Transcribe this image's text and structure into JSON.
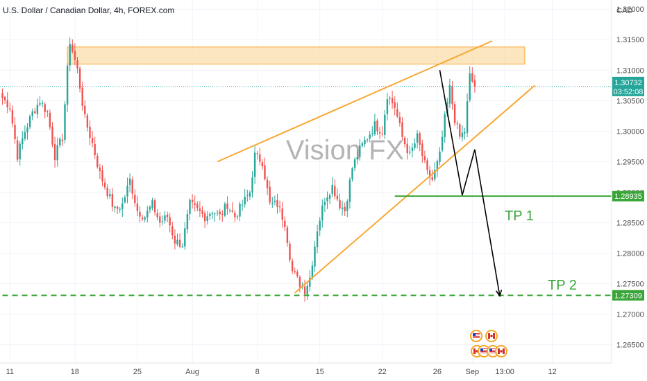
{
  "header": {
    "title": "U.S. Dollar / Canadian Dollar, 4h, FOREX.com",
    "currency": "CAD"
  },
  "watermark": "Vision FX",
  "colors": {
    "up": "#26a69a",
    "down": "#ef5350",
    "pattern": "#f7a834",
    "target": "#3aa639",
    "price_line": "#26a69a",
    "path": "#000000"
  },
  "annotations": {
    "tp1": "TP 1",
    "tp2": "TP 2"
  },
  "current_price": {
    "price": "1.30732",
    "countdown": "03:52:08",
    "value": 1.30732
  },
  "tp1_label": {
    "price": "1.28935",
    "value": 1.28935
  },
  "tp2_label": {
    "price": "1.27309",
    "value": 1.27309
  },
  "icons": [
    "us-flag-icon",
    "ca-flag-icon",
    "ca-flag-icon",
    "us-flag-icon",
    "us-flag-icon",
    "ca-flag-icon"
  ],
  "chart_data": {
    "type": "candlestick",
    "title": "U.S. Dollar / Canadian Dollar, 4h, FOREX.com",
    "ylim": [
      1.262,
      1.3215
    ],
    "y_ticks": [
      "1.32000",
      "1.31500",
      "1.31000",
      "1.30500",
      "1.30000",
      "1.29500",
      "1.29000",
      "1.28500",
      "1.28000",
      "1.27500",
      "1.27000",
      "1.26500"
    ],
    "x_ticks": [
      "11",
      "18",
      "25",
      "Aug",
      "8",
      "15",
      "22",
      "26",
      "Sep",
      "13:00",
      "12"
    ],
    "x_tick_index": [
      3,
      29,
      54,
      76,
      102,
      127,
      152,
      174,
      188,
      201,
      220
    ],
    "anchor_closes": [
      [
        0,
        1.3055
      ],
      [
        3,
        1.304
      ],
      [
        6,
        1.296
      ],
      [
        9,
        1.3
      ],
      [
        12,
        1.303
      ],
      [
        15,
        1.305
      ],
      [
        18,
        1.303
      ],
      [
        21,
        1.296
      ],
      [
        24,
        1.299
      ],
      [
        26,
        1.31
      ],
      [
        27,
        1.3148
      ],
      [
        30,
        1.31
      ],
      [
        33,
        1.302
      ],
      [
        36,
        1.298
      ],
      [
        39,
        1.293
      ],
      [
        42,
        1.29
      ],
      [
        45,
        1.287
      ],
      [
        48,
        1.288
      ],
      [
        51,
        1.292
      ],
      [
        54,
        1.287
      ],
      [
        57,
        1.286
      ],
      [
        60,
        1.288
      ],
      [
        63,
        1.285
      ],
      [
        66,
        1.286
      ],
      [
        69,
        1.282
      ],
      [
        72,
        1.2815
      ],
      [
        75,
        1.288
      ],
      [
        78,
        1.287
      ],
      [
        81,
        1.286
      ],
      [
        84,
        1.287
      ],
      [
        87,
        1.286
      ],
      [
        90,
        1.288
      ],
      [
        93,
        1.286
      ],
      [
        96,
        1.288
      ],
      [
        99,
        1.29
      ],
      [
        101,
        1.296
      ],
      [
        104,
        1.295
      ],
      [
        107,
        1.288
      ],
      [
        110,
        1.288
      ],
      [
        113,
        1.285
      ],
      [
        116,
        1.277
      ],
      [
        119,
        1.275
      ],
      [
        121,
        1.274
      ],
      [
        123,
        1.276
      ],
      [
        126,
        1.284
      ],
      [
        129,
        1.289
      ],
      [
        132,
        1.291
      ],
      [
        135,
        1.288
      ],
      [
        137,
        1.287
      ],
      [
        140,
        1.294
      ],
      [
        143,
        1.297
      ],
      [
        146,
        1.299
      ],
      [
        149,
        1.301
      ],
      [
        152,
        1.3
      ],
      [
        154,
        1.306
      ],
      [
        157,
        1.304
      ],
      [
        160,
        1.299
      ],
      [
        163,
        1.296
      ],
      [
        166,
        1.299
      ],
      [
        168,
        1.296
      ],
      [
        170,
        1.293
      ],
      [
        172,
        1.292
      ],
      [
        175,
        1.296
      ],
      [
        177,
        1.302
      ],
      [
        179,
        1.307
      ],
      [
        181,
        1.302
      ],
      [
        183,
        1.299
      ],
      [
        185,
        1.3
      ],
      [
        187,
        1.309
      ],
      [
        189,
        1.3073
      ]
    ],
    "pattern": {
      "resistance_zone": {
        "x1": 26,
        "x2": 209,
        "y_low": 1.311,
        "y_high": 1.3138
      },
      "upper_line": [
        [
          86,
          1.295
        ],
        [
          196,
          1.3148
        ]
      ],
      "lower_line": [
        [
          117,
          1.2735
        ],
        [
          213,
          1.3075
        ]
      ]
    },
    "levels": [
      {
        "name": "TP 1",
        "value": 1.28935,
        "style": "solid",
        "start_x": 157
      },
      {
        "name": "TP 2",
        "value": 1.27309,
        "style": "dashed",
        "start_x": 0
      }
    ],
    "projection": [
      [
        175,
        1.31
      ],
      [
        184,
        1.2895
      ],
      [
        189,
        1.297
      ],
      [
        199,
        1.273
      ]
    ]
  }
}
